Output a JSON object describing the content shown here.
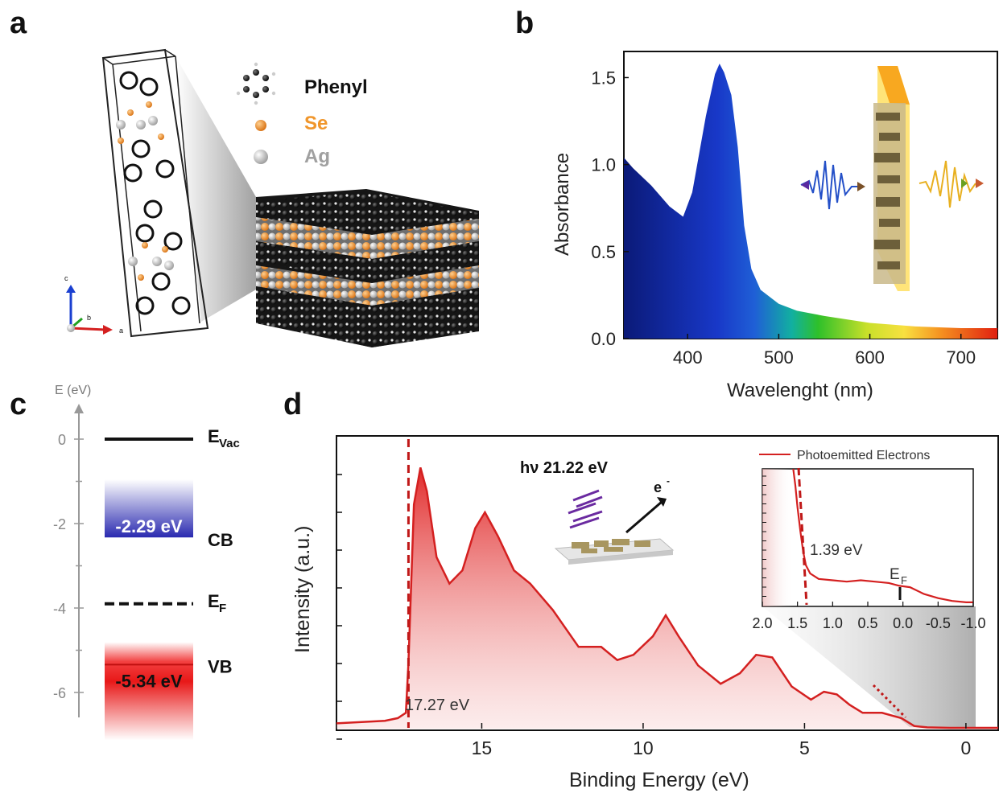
{
  "panels": {
    "a": "a",
    "b": "b",
    "c": "c",
    "d": "d"
  },
  "panel_a": {
    "legend": {
      "phenyl": "Phenyl",
      "se": "Se",
      "ag": "Ag"
    },
    "axes": {
      "c": "c",
      "b": "b",
      "a": "a"
    },
    "colors": {
      "se": "#f0962c",
      "ag": "#bdbdbd",
      "carbon": "#1a1a1a"
    }
  },
  "chart_data": [
    {
      "id": "panel-b",
      "type": "area",
      "xlabel": "Wavelenght (nm)",
      "ylabel": "Absorbance",
      "xlim": [
        330,
        740
      ],
      "ylim": [
        0,
        1.65
      ],
      "xticks": [
        "400",
        "500",
        "600",
        "700"
      ],
      "yticks": [
        "0.0",
        "0.5",
        "1.0",
        "1.5"
      ],
      "fill": "spectral gradient (blue to red)",
      "x": [
        330,
        340,
        360,
        380,
        395,
        405,
        420,
        430,
        435,
        440,
        448,
        455,
        462,
        470,
        480,
        500,
        520,
        550,
        600,
        650,
        700,
        740
      ],
      "y": [
        1.04,
        0.98,
        0.88,
        0.76,
        0.7,
        0.84,
        1.28,
        1.52,
        1.58,
        1.53,
        1.4,
        1.1,
        0.65,
        0.4,
        0.28,
        0.2,
        0.16,
        0.13,
        0.09,
        0.07,
        0.06,
        0.06
      ]
    },
    {
      "id": "panel-c",
      "type": "diagram",
      "ylabel": "E (eV)",
      "yticks": [
        "0",
        "-2",
        "-4",
        "-6"
      ],
      "levels": [
        {
          "name": "EVac",
          "value": 0
        },
        {
          "name": "CB",
          "value": -2.29,
          "label": "-2.29 eV"
        },
        {
          "name": "EF",
          "value": -3.9
        },
        {
          "name": "VB",
          "value": -5.34,
          "label": "-5.34 eV"
        }
      ]
    },
    {
      "id": "panel-d",
      "type": "line",
      "xlabel": "Binding Energy (eV)",
      "ylabel": "Intensity (a.u.)",
      "xlim": [
        19.5,
        -1
      ],
      "xticks": [
        "15",
        "10",
        "5",
        "0"
      ],
      "cutoff_label": "17.27 eV",
      "cutoff_value": 17.27,
      "annotation_photon": "hν 21.22 eV",
      "annotation_electron": "e",
      "color": "#d42020",
      "x": [
        19.5,
        18,
        17.6,
        17.35,
        17.27,
        17.1,
        16.9,
        16.7,
        16.4,
        16.0,
        15.6,
        15.2,
        14.9,
        14.5,
        14.0,
        13.5,
        12.8,
        12.0,
        11.3,
        10.8,
        10.3,
        9.7,
        9.3,
        8.9,
        8.3,
        7.6,
        7.0,
        6.5,
        6.0,
        5.4,
        4.8,
        4.4,
        4.0,
        3.6,
        3.2,
        2.6,
        2.0,
        1.6,
        1.2,
        0.5,
        -1
      ],
      "y": [
        0.02,
        0.03,
        0.04,
        0.06,
        0.25,
        0.85,
        0.99,
        0.9,
        0.65,
        0.55,
        0.6,
        0.76,
        0.82,
        0.73,
        0.6,
        0.55,
        0.45,
        0.31,
        0.31,
        0.26,
        0.28,
        0.35,
        0.43,
        0.35,
        0.24,
        0.17,
        0.21,
        0.28,
        0.27,
        0.16,
        0.11,
        0.14,
        0.13,
        0.09,
        0.06,
        0.06,
        0.04,
        0.01,
        0.005,
        0.003,
        0.003
      ]
    },
    {
      "id": "panel-d-inset",
      "type": "line",
      "legend": "Photoemitted Electrons",
      "xlim": [
        2.0,
        -1.0
      ],
      "xticks": [
        "2.0",
        "1.5",
        "1.0",
        "0.5",
        "0.0",
        "-0.5",
        "-1.0"
      ],
      "onset_label": "1.39 eV",
      "onset_value": 1.39,
      "fermi_label": "E",
      "fermi_sub": "F",
      "color": "#d42020",
      "x": [
        1.56,
        1.53,
        1.5,
        1.46,
        1.42,
        1.38,
        1.32,
        1.2,
        1.0,
        0.8,
        0.6,
        0.4,
        0.2,
        0.05,
        -0.1,
        -0.3,
        -0.5,
        -0.7,
        -0.9,
        -1.0
      ],
      "y": [
        1.0,
        0.88,
        0.72,
        0.55,
        0.4,
        0.3,
        0.24,
        0.2,
        0.19,
        0.18,
        0.19,
        0.18,
        0.17,
        0.15,
        0.14,
        0.09,
        0.06,
        0.04,
        0.03,
        0.03
      ]
    }
  ]
}
